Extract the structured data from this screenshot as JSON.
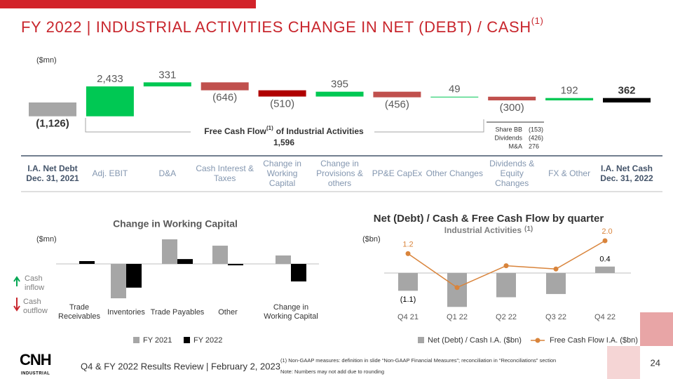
{
  "header": {
    "title": "FY 2022 | INDUSTRIAL ACTIVITIES CHANGE IN NET (DEBT) / CASH",
    "title_note": "(1)"
  },
  "chart_data": [
    {
      "type": "waterfall",
      "unit_label": "($mn)",
      "categories": [
        "I.A. Net Debt Dec. 31, 2021",
        "Adj. EBIT",
        "D&A",
        "Cash Interest & Taxes",
        "Change in Working Capital",
        "Change in Provisions & others",
        "PP&E CapEx",
        "Other Changes",
        "Dividends & Equity Changes",
        "FX & Other",
        "I.A. Net Cash Dec. 31, 2022"
      ],
      "values": [
        -1126,
        2433,
        331,
        -646,
        -510,
        395,
        -456,
        49,
        -300,
        192,
        362
      ],
      "value_labels": [
        "(1,126)",
        "2,433",
        "331",
        "(646)",
        "(510)",
        "395",
        "(456)",
        "49",
        "(300)",
        "192",
        "362"
      ],
      "colors": [
        "#a6a6a6",
        "#00c853",
        "#00c853",
        "#c0504d",
        "#b00000",
        "#00c853",
        "#c0504d",
        "#00c853",
        "#c0504d",
        "#00c853",
        "#000000"
      ],
      "annotation": {
        "label": "Free Cash Flow",
        "label_note": "(1)",
        "label_rest": "of Industrial Activities",
        "value_label": "1,596"
      },
      "breakdown": [
        {
          "name": "Share BB",
          "value_label": "(153)"
        },
        {
          "name": "Dividends",
          "value_label": "(426)"
        },
        {
          "name": "M&A",
          "value_label": "276"
        }
      ]
    },
    {
      "type": "bar",
      "title": "Change in Working Capital",
      "unit_label": "($mn)",
      "categories": [
        "Trade Receivables",
        "Inventories",
        "Trade Payables",
        "Other",
        "Change in Working Capital"
      ],
      "series": [
        {
          "name": "FY 2021",
          "color": "#a6a6a6",
          "values": [
            0,
            -1000,
            714,
            530,
            245
          ]
        },
        {
          "name": "FY 2022",
          "color": "#000000",
          "values": [
            82,
            -690,
            140,
            -42,
            -510
          ]
        }
      ],
      "inflow_label": "Cash inflow",
      "outflow_label": "Cash outflow"
    },
    {
      "type": "combo",
      "title": "Net (Debt) / Cash & Free Cash Flow by quarter",
      "subtitle": "Industrial Activities",
      "subtitle_note": "(1)",
      "unit_label": "($bn)",
      "categories": [
        "Q4 21",
        "Q1 22",
        "Q2 22",
        "Q3 22",
        "Q4 22"
      ],
      "series": [
        {
          "name": "Net (Debt) / Cash I.A. ($bn)",
          "type": "bar",
          "color": "#a6a6a6",
          "values": [
            -1.1,
            -2.1,
            -1.5,
            -1.3,
            0.4
          ],
          "value_labels": [
            "(1.1)",
            null,
            null,
            null,
            "0.4"
          ]
        },
        {
          "name": "Free Cash Flow I.A. ($bn)",
          "type": "line",
          "color": "#d9843b",
          "values": [
            1.2,
            -0.9,
            0.45,
            0.25,
            2.0
          ],
          "value_labels": [
            "1.2",
            null,
            null,
            null,
            "2.0"
          ]
        }
      ]
    }
  ],
  "footer": {
    "logo": "CNH",
    "logo_sub": "INDUSTRIAL",
    "text": "Q4 & FY 2022 Results Review | February 2, 2023",
    "footnote": "(1) Non-GAAP measures: definition in slide “Non-GAAP Financial Measures”; reconciliation in “Reconciliations” section",
    "note": "Note: Numbers may not add due to rounding",
    "page": 24
  }
}
